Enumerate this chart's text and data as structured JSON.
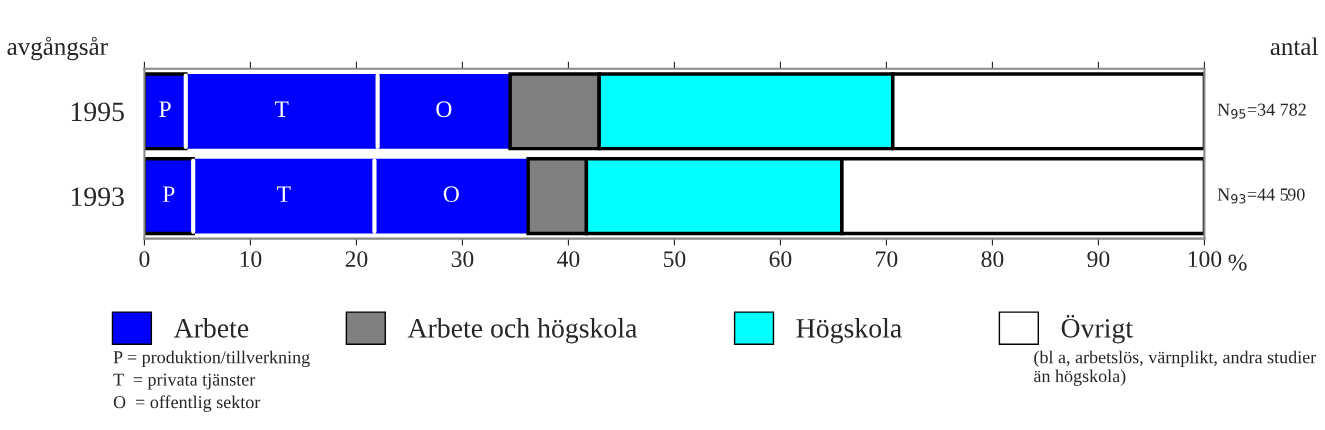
{
  "chart_data": {
    "type": "bar",
    "orientation": "horizontal",
    "stacked": true,
    "categories": [
      "1995",
      "1993"
    ],
    "series": [
      {
        "name": "P",
        "color": "#0000ff",
        "values": [
          3.9,
          4.6
        ]
      },
      {
        "name": "T",
        "color": "#0000ff",
        "values": [
          18.1,
          17.1
        ]
      },
      {
        "name": "O",
        "color": "#0000ff",
        "values": [
          12.5,
          14.5
        ]
      },
      {
        "name": "Arbete och högskola",
        "color": "#808080",
        "values": [
          8.4,
          5.5
        ]
      },
      {
        "name": "Högskola",
        "color": "#00ffff",
        "values": [
          27.7,
          24.1
        ]
      },
      {
        "name": "Övrigt",
        "color": "#ffffff",
        "values": [
          29.4,
          34.2
        ]
      }
    ],
    "xlim": [
      0,
      100
    ],
    "xticks": [
      0,
      10,
      20,
      30,
      40,
      50,
      60,
      70,
      80,
      90,
      100
    ],
    "xlabel": "%",
    "ylabel": "avgångsår",
    "y2label": "antal",
    "legend": "bottom",
    "grid": false,
    "annotations": [
      "Arbete",
      "P = produktion/tillverkning",
      "T  = privata tjänster",
      "O  = offentlig sektor",
      "(bl a, arbetslös, värnplikt, andra studier än högskola)",
      "N$_{95}$=34 782",
      "N$_{93}$=44 590"
    ]
  }
}
